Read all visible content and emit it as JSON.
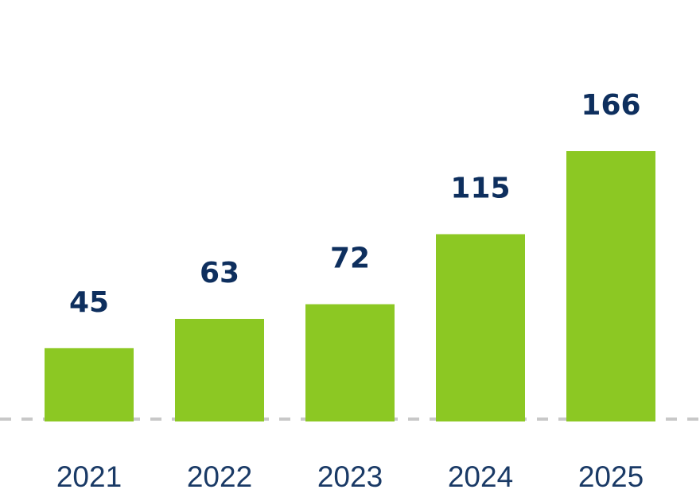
{
  "chart_data": {
    "type": "bar",
    "categories": [
      "2021",
      "2022",
      "2023",
      "2024",
      "2025"
    ],
    "values": [
      45,
      63,
      72,
      115,
      166
    ],
    "title": "",
    "xlabel": "",
    "ylabel": "",
    "grid": false,
    "baseline_style": "dashed",
    "data_labels": true
  },
  "colors": {
    "bar": "#8cc823",
    "value_label": "#0e2f5e",
    "tick_label": "#1a3a66",
    "baseline": "#c8c8c8"
  }
}
